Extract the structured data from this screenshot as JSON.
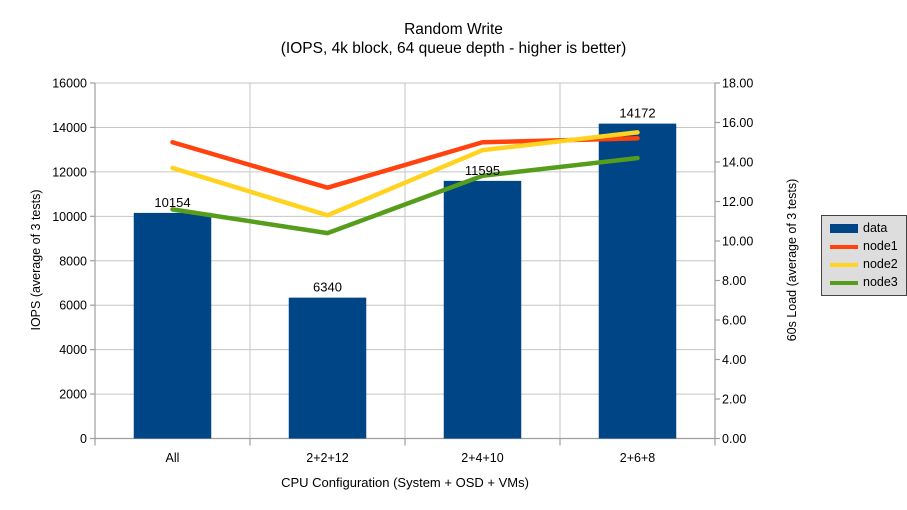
{
  "chart_data": {
    "type": "bar+line",
    "title": "Random Write",
    "subtitle": "(IOPS, 4k block, 64 queue depth - higher is better)",
    "categories": [
      "All",
      "2+2+12",
      "2+4+10",
      "2+6+8"
    ],
    "series": [
      {
        "name": "data",
        "type": "bar",
        "axis": "left",
        "color": "#004586",
        "values": [
          10154,
          6340,
          11595,
          14172
        ],
        "data_labels": true
      },
      {
        "name": "node1",
        "type": "line",
        "axis": "right",
        "color": "#FF420E",
        "values": [
          15.0,
          12.7,
          15.0,
          15.2
        ]
      },
      {
        "name": "node2",
        "type": "line",
        "axis": "right",
        "color": "#FFD320",
        "values": [
          13.7,
          11.3,
          14.6,
          15.5
        ]
      },
      {
        "name": "node3",
        "type": "line",
        "axis": "right",
        "color": "#579D1C",
        "values": [
          11.6,
          10.4,
          13.3,
          14.2
        ]
      }
    ],
    "left_axis": {
      "title": "IOPS (average of 3 tests)",
      "min": 0,
      "max": 16000,
      "step": 2000,
      "decimals": 0
    },
    "right_axis": {
      "title": "60s Load (average of 3 tests)",
      "min": 0,
      "max": 18,
      "step": 2,
      "decimals": 2
    },
    "x_axis": {
      "title": "CPU Configuration (System + OSD + VMs)"
    },
    "grid": {
      "horizontal": true,
      "vertical": true
    },
    "legend_position": "right",
    "style": {
      "grid_color": "#c6c6c6",
      "axis_color": "#9e9e9e",
      "text_color": "#000000",
      "legend_bg": "#dddddd",
      "legend_border": "#444444"
    }
  }
}
